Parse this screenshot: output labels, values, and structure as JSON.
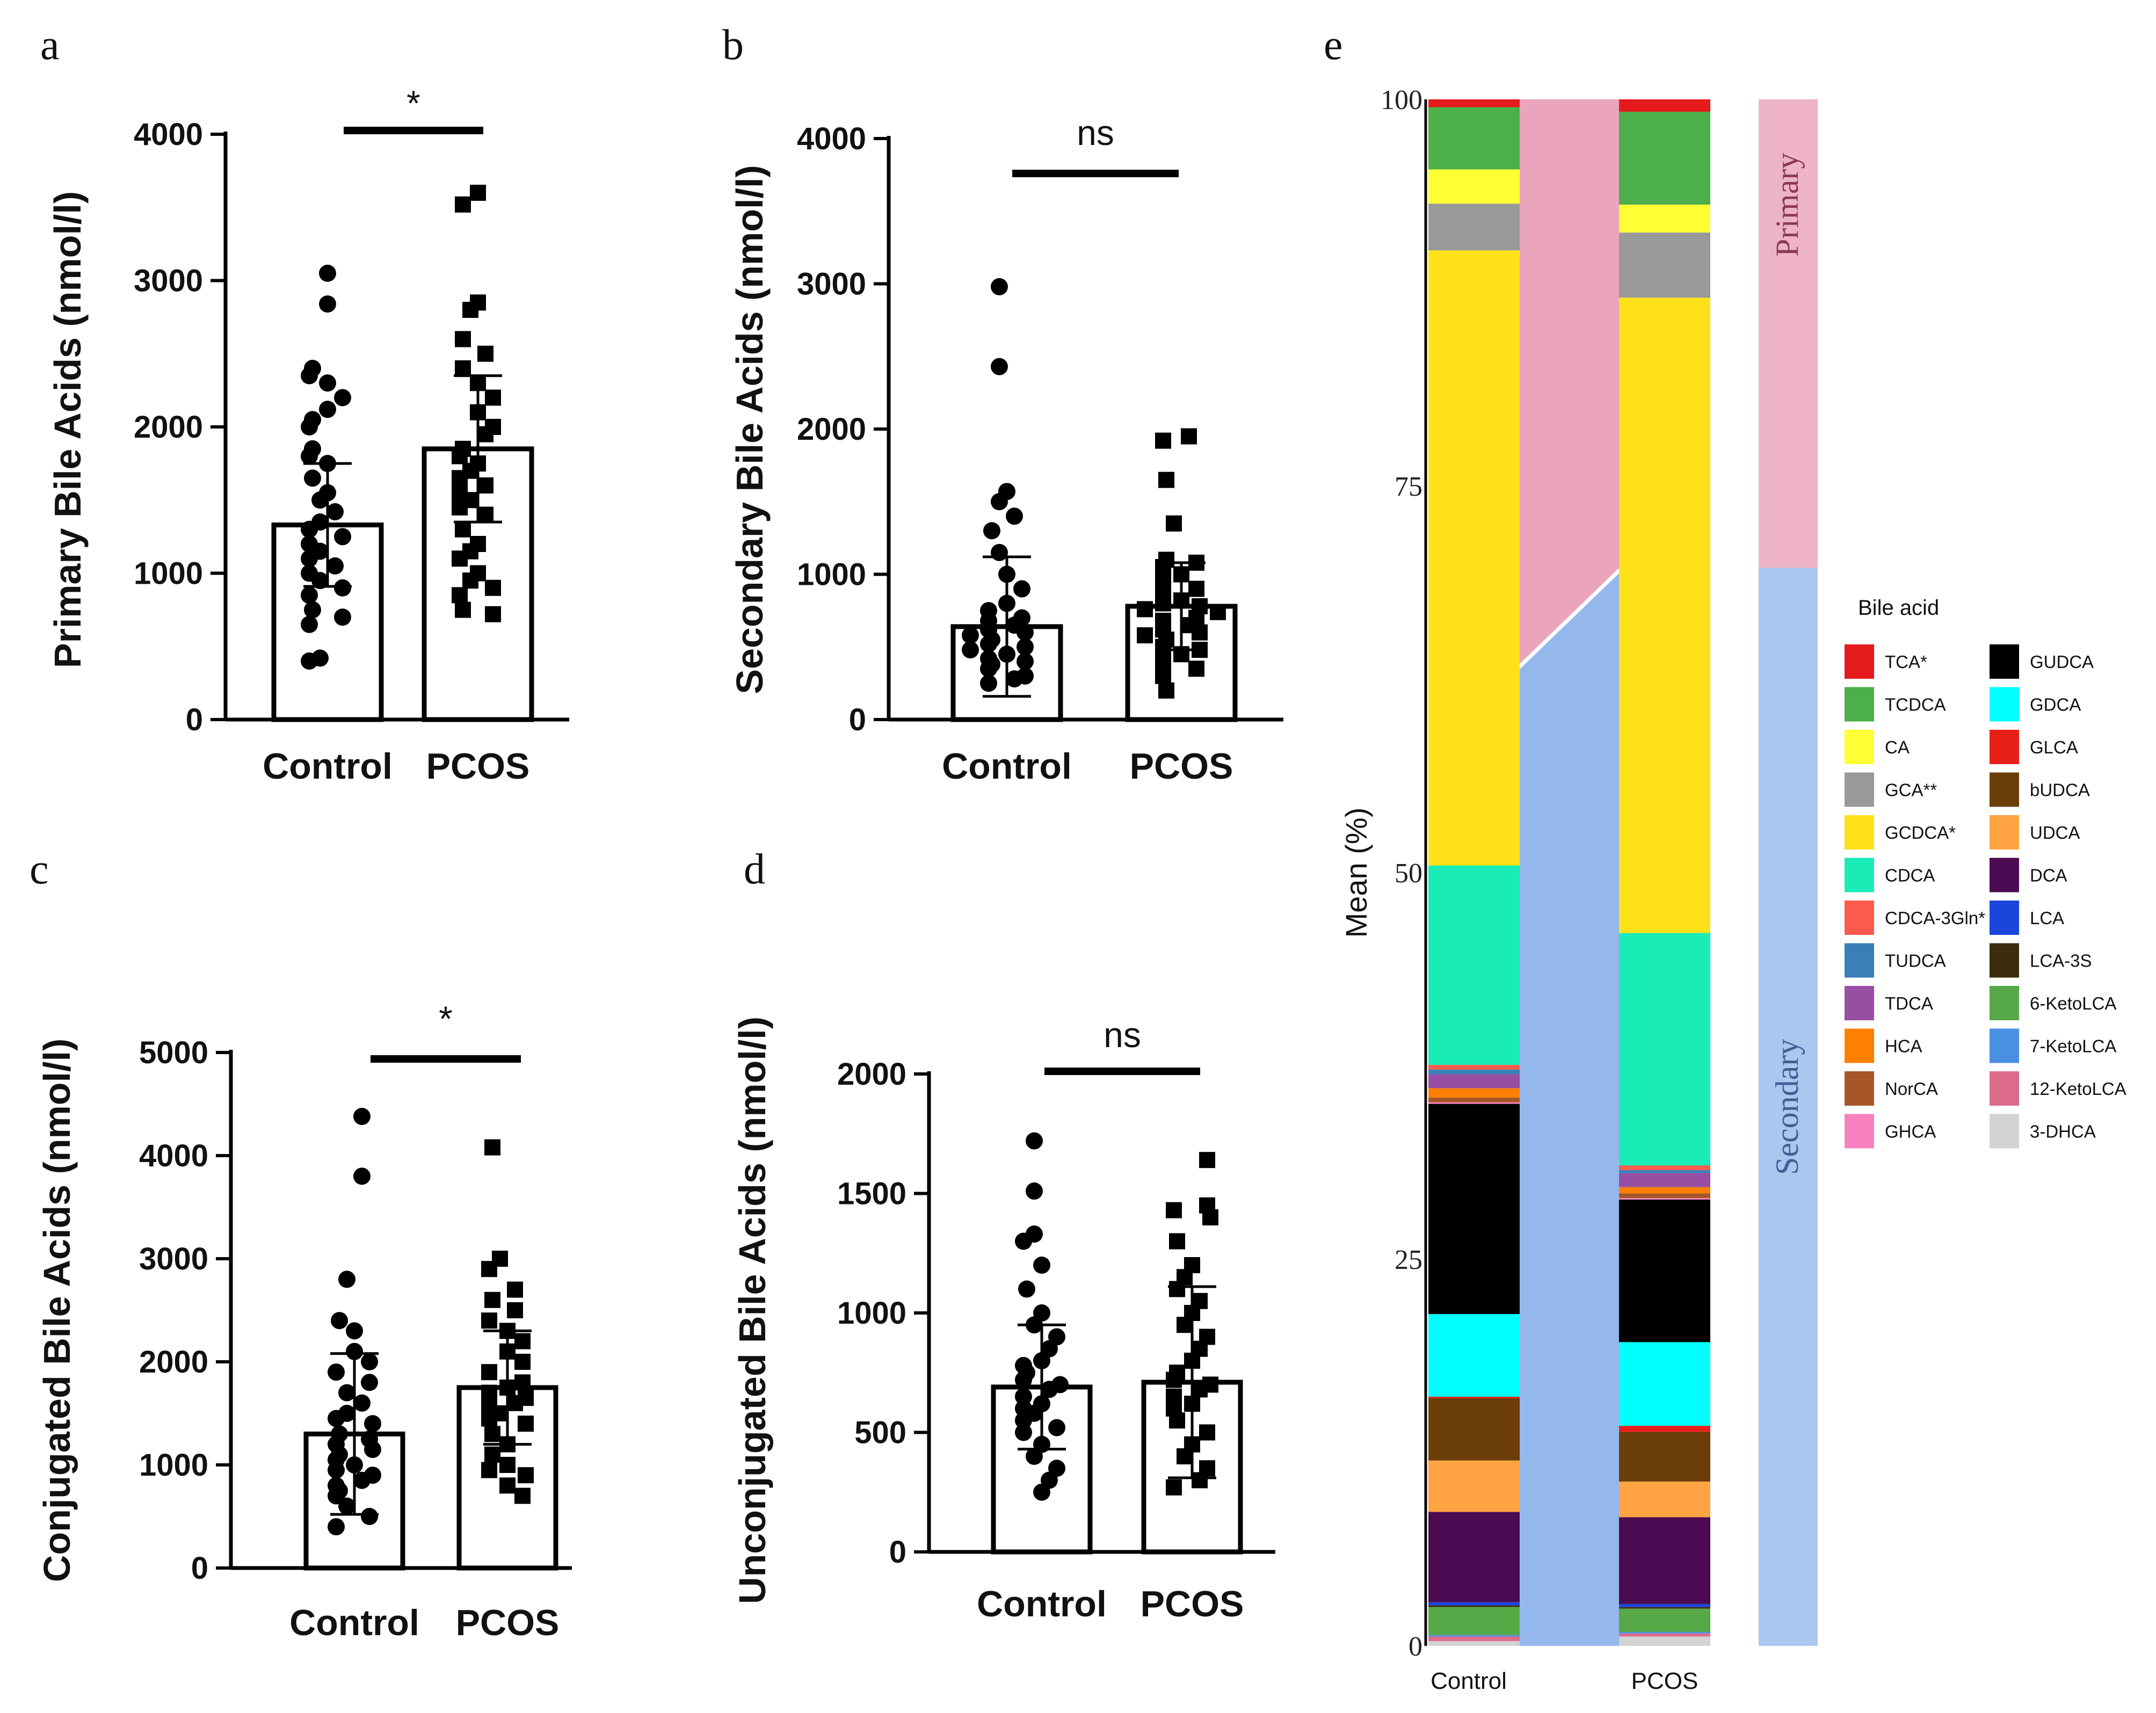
{
  "chart_data": [
    {
      "id": "a",
      "type": "bar",
      "panel_label": "a",
      "ylabel": "Primary Bile Acids (nmol/l)",
      "ylim": [
        0,
        4000
      ],
      "yticks": [
        0,
        1000,
        2000,
        3000,
        4000
      ],
      "categories": [
        "Control",
        "PCOS"
      ],
      "means": [
        1330,
        1850
      ],
      "sd": [
        420,
        500
      ],
      "significance": "*",
      "points": [
        [
          3050,
          2840,
          2400,
          2350,
          2300,
          2200,
          2120,
          2050,
          2000,
          1850,
          1800,
          1750,
          1650,
          1550,
          1500,
          1420,
          1350,
          1300,
          1250,
          1200,
          1150,
          1100,
          1050,
          1000,
          950,
          900,
          850,
          750,
          700,
          650,
          420,
          400
        ],
        [
          3600,
          3520,
          2850,
          2800,
          2600,
          2500,
          2400,
          2300,
          2200,
          2100,
          2000,
          1950,
          1850,
          1800,
          1750,
          1700,
          1650,
          1600,
          1550,
          1500,
          1450,
          1400,
          1300,
          1200,
          1150,
          1100,
          1000,
          950,
          900,
          850,
          750,
          720
        ]
      ]
    },
    {
      "id": "b",
      "type": "bar",
      "panel_label": "b",
      "ylabel": "Secondary Bile Acids (nmol/l)",
      "ylim": [
        0,
        4000
      ],
      "yticks": [
        0,
        1000,
        2000,
        3000,
        4000
      ],
      "categories": [
        "Control",
        "PCOS"
      ],
      "means": [
        640,
        780
      ],
      "sd": [
        480,
        300
      ],
      "significance": "ns",
      "points": [
        [
          2980,
          2430,
          1570,
          1500,
          1400,
          1300,
          1150,
          1000,
          900,
          800,
          750,
          700,
          680,
          650,
          620,
          600,
          580,
          550,
          520,
          500,
          480,
          450,
          420,
          400,
          380,
          350,
          300,
          280,
          250
        ],
        [
          1950,
          1920,
          1650,
          1350,
          1100,
          1080,
          1050,
          1000,
          950,
          900,
          850,
          820,
          800,
          780,
          760,
          740,
          700,
          680,
          650,
          620,
          600,
          580,
          550,
          500,
          480,
          450,
          400,
          350,
          300,
          200
        ]
      ]
    },
    {
      "id": "c",
      "type": "bar",
      "panel_label": "c",
      "ylabel": "Conjugated Bile Acids (nmol/l)",
      "ylim": [
        0,
        5000
      ],
      "yticks": [
        0,
        1000,
        2000,
        3000,
        4000,
        5000
      ],
      "categories": [
        "Control",
        "PCOS"
      ],
      "means": [
        1300,
        1750
      ],
      "sd": [
        780,
        550
      ],
      "significance": "*",
      "points": [
        [
          4380,
          3800,
          2800,
          2400,
          2300,
          2100,
          2000,
          1900,
          1800,
          1700,
          1600,
          1500,
          1450,
          1400,
          1300,
          1250,
          1200,
          1150,
          1100,
          1050,
          1000,
          950,
          900,
          850,
          800,
          750,
          700,
          600,
          500,
          400
        ],
        [
          4080,
          3000,
          2900,
          2700,
          2600,
          2500,
          2400,
          2300,
          2200,
          2100,
          2000,
          1900,
          1800,
          1750,
          1700,
          1650,
          1600,
          1550,
          1500,
          1450,
          1400,
          1300,
          1200,
          1100,
          1000,
          950,
          900,
          800,
          700
        ]
      ]
    },
    {
      "id": "d",
      "type": "bar",
      "panel_label": "d",
      "ylabel": "Unconjugated Bile Acids (nmol/l)",
      "ylim": [
        0,
        2000
      ],
      "yticks": [
        0,
        500,
        1000,
        1500,
        2000
      ],
      "categories": [
        "Control",
        "PCOS"
      ],
      "means": [
        690,
        710
      ],
      "sd": [
        260,
        400
      ],
      "significance": "ns",
      "points": [
        [
          1720,
          1510,
          1330,
          1300,
          1200,
          1100,
          1000,
          950,
          900,
          850,
          800,
          780,
          750,
          720,
          700,
          680,
          650,
          620,
          600,
          580,
          550,
          520,
          500,
          450,
          400,
          350,
          300,
          250
        ],
        [
          1640,
          1450,
          1430,
          1400,
          1300,
          1200,
          1150,
          1100,
          1050,
          1000,
          950,
          900,
          850,
          800,
          750,
          720,
          700,
          680,
          650,
          620,
          600,
          550,
          500,
          450,
          400,
          350,
          300,
          270
        ]
      ]
    },
    {
      "id": "e",
      "type": "stacked_bar",
      "panel_label": "e",
      "ylabel": "Mean (%)",
      "ylim": [
        0,
        100
      ],
      "yticks": [
        0,
        25,
        50,
        75,
        100
      ],
      "categories": [
        "Control",
        "PCOS"
      ],
      "legend_title": "Bile acid",
      "side_labels": [
        "Primary",
        "Secondary"
      ],
      "primary_share": [
        36.5,
        30.3
      ],
      "series": [
        {
          "name": "TCA*",
          "color": "#e41a1c",
          "values": [
            0.5,
            0.8
          ]
        },
        {
          "name": "TCDCA",
          "color": "#4daf4a",
          "values": [
            4.0,
            6.0
          ]
        },
        {
          "name": "CA",
          "color": "#ffff33",
          "values": [
            2.2,
            1.8
          ]
        },
        {
          "name": "GCA**",
          "color": "#999999",
          "values": [
            3.0,
            4.2
          ]
        },
        {
          "name": "GCDCA*",
          "color": "#ffe11a",
          "values": [
            39.5,
            41.0
          ]
        },
        {
          "name": "CDCA",
          "color": "#19ecb7",
          "values": [
            12.8,
            15.0
          ]
        },
        {
          "name": "CDCA-3Gln*",
          "color": "#fb5a4d",
          "values": [
            0.3,
            0.3
          ]
        },
        {
          "name": "TUDCA",
          "color": "#3b7fb8",
          "values": [
            0.3,
            0.2
          ]
        },
        {
          "name": "TDCA",
          "color": "#984ea3",
          "values": [
            0.9,
            0.9
          ]
        },
        {
          "name": "HCA",
          "color": "#ff7f00",
          "values": [
            0.6,
            0.4
          ]
        },
        {
          "name": "NorCA",
          "color": "#a65628",
          "values": [
            0.3,
            0.3
          ]
        },
        {
          "name": "GHCA",
          "color": "#f781bf",
          "values": [
            0.1,
            0.1
          ]
        },
        {
          "name": "GUDCA",
          "color": "#000000",
          "values": [
            13.5,
            9.2
          ]
        },
        {
          "name": "GDCA",
          "color": "#00ffff",
          "values": [
            5.3,
            5.4
          ]
        },
        {
          "name": "GLCA",
          "color": "#e7211a",
          "values": [
            0.1,
            0.4
          ]
        },
        {
          "name": "bUDCA",
          "color": "#6b3d07",
          "values": [
            4.0,
            3.2
          ]
        },
        {
          "name": "UDCA",
          "color": "#ffa343",
          "values": [
            3.3,
            2.3
          ]
        },
        {
          "name": "DCA",
          "color": "#4b0a52",
          "values": [
            5.8,
            5.6
          ]
        },
        {
          "name": "LCA",
          "color": "#1b46dc",
          "values": [
            0.2,
            0.2
          ]
        },
        {
          "name": "LCA-3S",
          "color": "#3d2b0d",
          "values": [
            0.1,
            0.1
          ]
        },
        {
          "name": "6-KetoLCA",
          "color": "#57a846",
          "values": [
            1.8,
            1.5
          ]
        },
        {
          "name": "7-KetoLCA",
          "color": "#4a8fe2",
          "values": [
            0.1,
            0.1
          ]
        },
        {
          "name": "12-KetoLCA",
          "color": "#dc6b8c",
          "values": [
            0.3,
            0.2
          ]
        },
        {
          "name": "3-DHCA",
          "color": "#d3d3d3",
          "values": [
            0.3,
            0.6
          ]
        }
      ]
    }
  ]
}
